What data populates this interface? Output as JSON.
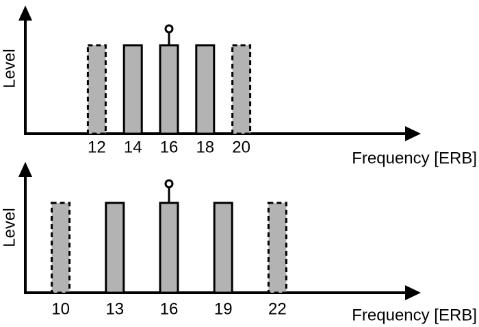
{
  "panels": [
    {
      "y_label": "Level",
      "x_label": "Frequency [ERB]",
      "ticks": [
        12,
        14,
        16,
        18,
        20
      ]
    },
    {
      "y_label": "Level",
      "x_label": "Frequency [ERB]",
      "ticks": [
        10,
        13,
        16,
        19,
        22
      ]
    }
  ]
}
